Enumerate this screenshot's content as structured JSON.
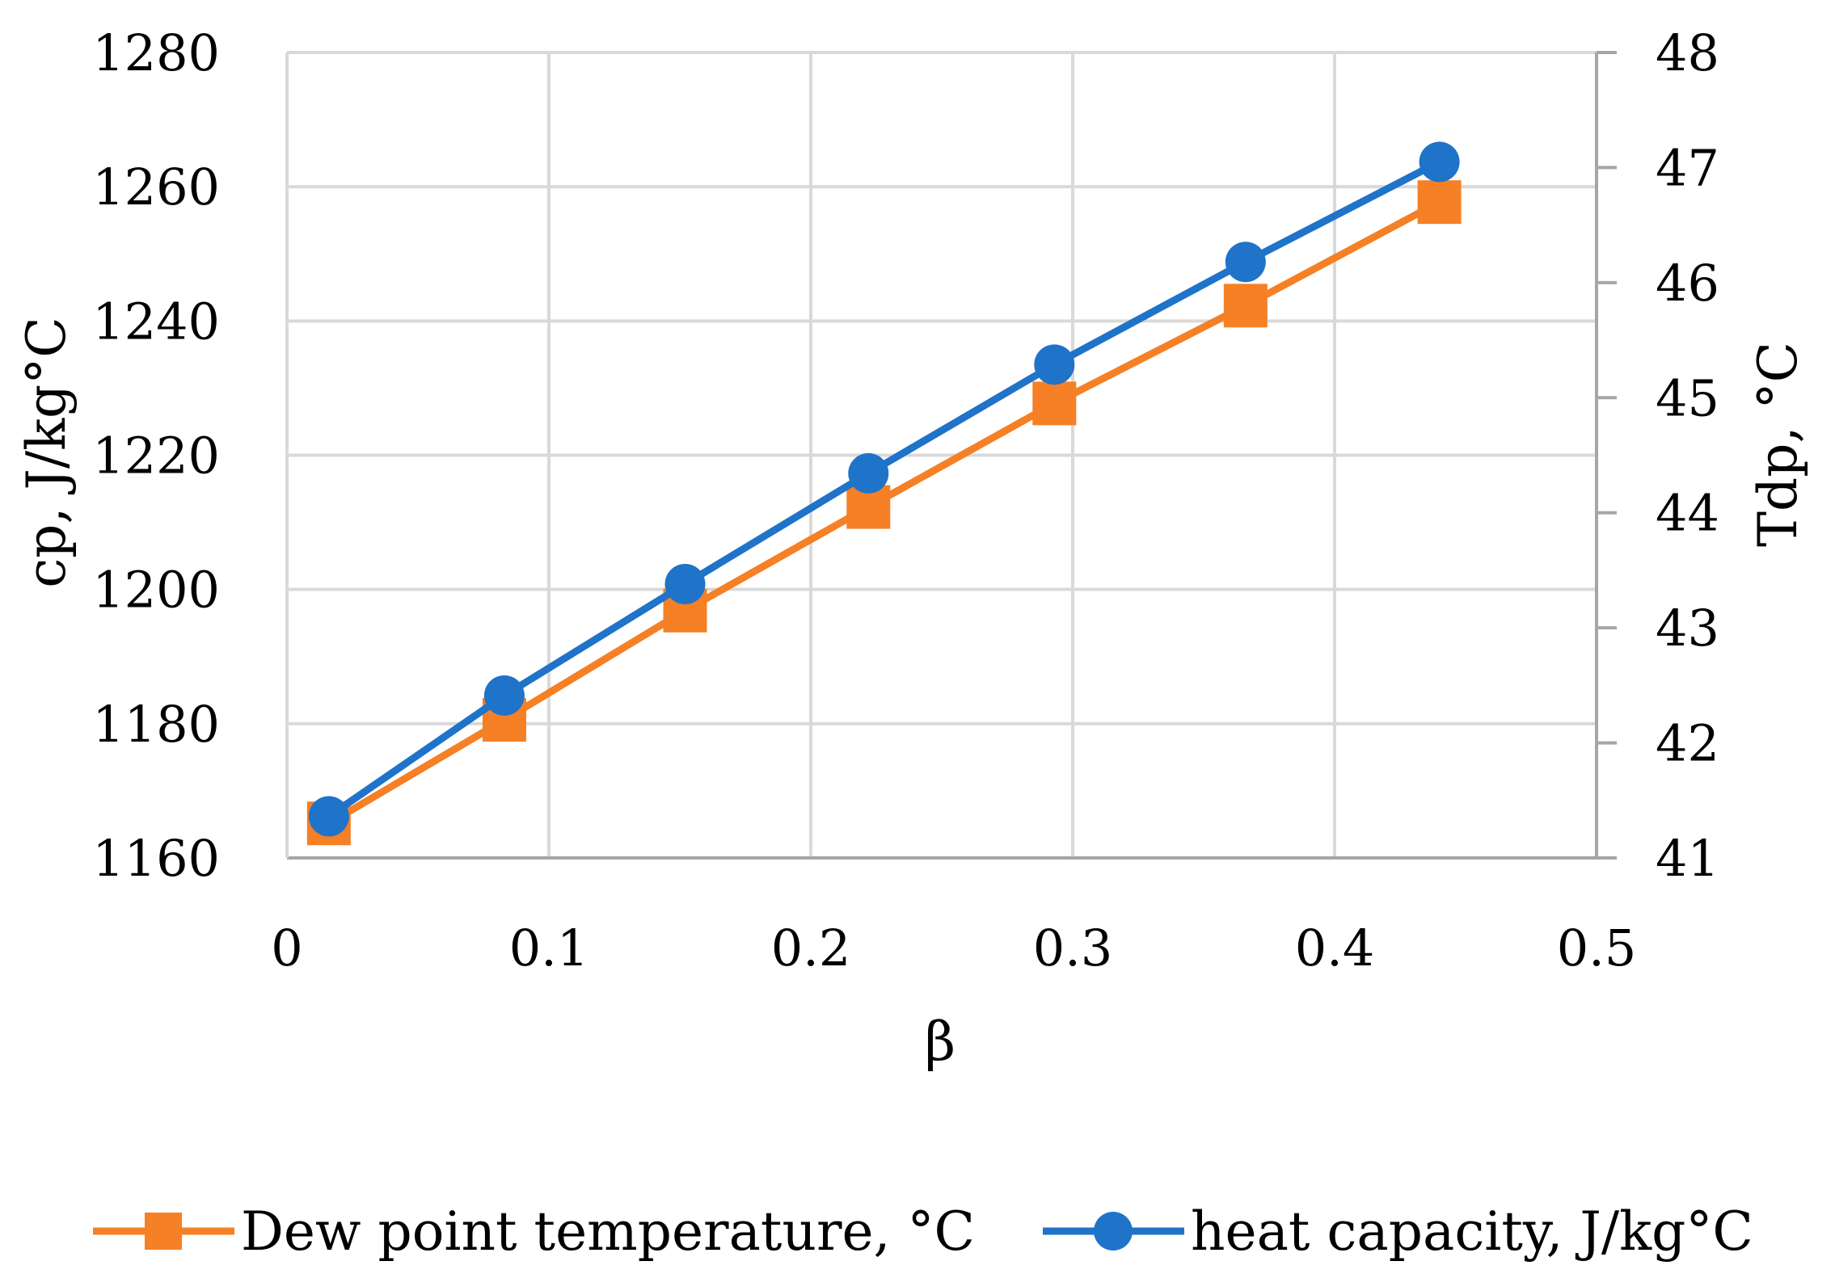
{
  "chart_data": {
    "type": "line",
    "title": "",
    "xlabel": "β",
    "ylabel_left": "cp, J/kg°C",
    "ylabel_right": "Tdp, °C",
    "xlim": [
      0,
      0.5
    ],
    "ylim_left": [
      1160,
      1280
    ],
    "ylim_right": [
      41,
      48
    ],
    "x_ticks": [
      "0",
      "0.1",
      "0.2",
      "0.3",
      "0.4",
      "0.5"
    ],
    "y_left_ticks": [
      "1160",
      "1180",
      "1200",
      "1220",
      "1240",
      "1260",
      "1280"
    ],
    "y_right_ticks": [
      "41",
      "42",
      "43",
      "44",
      "45",
      "46",
      "47",
      "48"
    ],
    "grid": true,
    "legend_position": "bottom",
    "series": [
      {
        "name": "Dew point temperature, °C",
        "axis": "right",
        "color": "#f58025",
        "marker": "square",
        "x": [
          0.016,
          0.083,
          0.152,
          0.222,
          0.293,
          0.366,
          0.44
        ],
        "y": [
          41.3,
          42.2,
          43.15,
          44.05,
          44.95,
          45.8,
          46.7
        ]
      },
      {
        "name": "heat capacity, J/kg°C",
        "axis": "left",
        "color": "#1f73c9",
        "marker": "circle",
        "x": [
          0.016,
          0.083,
          0.152,
          0.222,
          0.293,
          0.366,
          0.44
        ],
        "y": [
          1166.2,
          1184.2,
          1200.8,
          1217.3,
          1233.5,
          1248.8,
          1263.7
        ]
      }
    ]
  }
}
